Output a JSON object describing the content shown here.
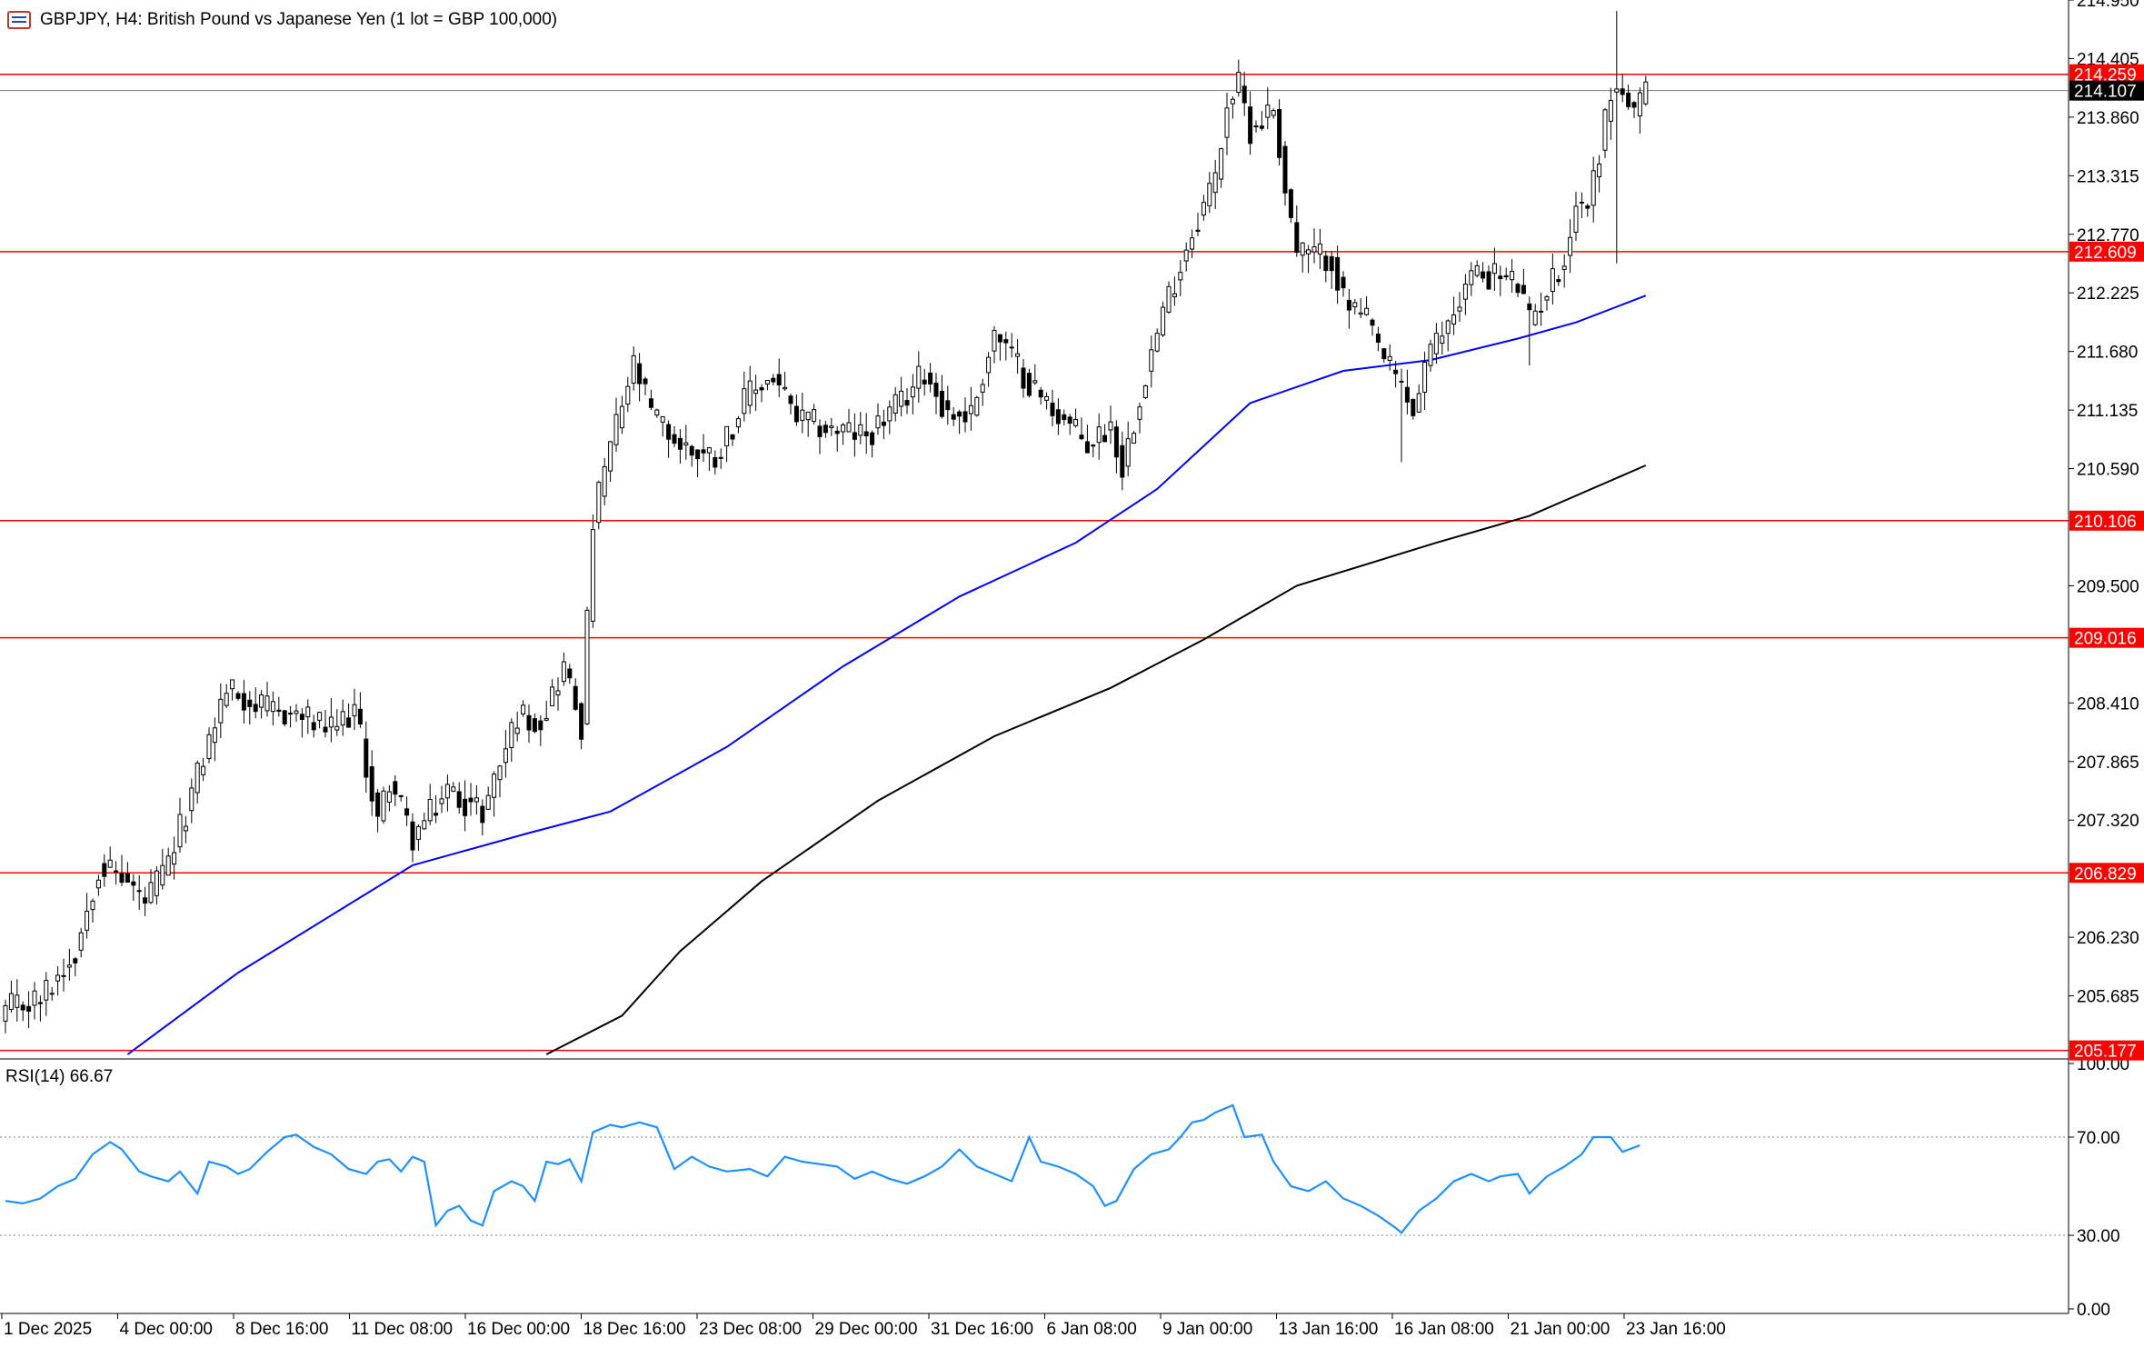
{
  "window": {
    "title": "GBPJPY, H4:  British Pound vs Japanese Yen (1 lot = GBP 100,000)"
  },
  "colors": {
    "background": "#ffffff",
    "candle_up": "#ffffff",
    "candle_down": "#000000",
    "candle_outline": "#000000",
    "sma_fast": "#0000ff",
    "sma_slow": "#000000",
    "level_line": "#ff0000",
    "current_price_line": "#808080",
    "rsi_line": "#1e90ff",
    "axis_text": "#000000"
  },
  "chart_data": [
    {
      "type": "candlestick",
      "symbol": "GBPJPY",
      "timeframe": "H4",
      "title": "GBPJPY, H4:  British Pound vs Japanese Yen (1 lot = GBP 100,000)",
      "ylim": [
        205.14,
        214.95
      ],
      "y_ticks": [
        "214.950",
        "214.405",
        "213.860",
        "213.315",
        "212.770",
        "212.225",
        "211.680",
        "211.135",
        "210.590",
        "209.500",
        "208.410",
        "207.865",
        "207.320",
        "206.230",
        "205.685"
      ],
      "x_ticks": [
        "1 Dec 2025",
        "4 Dec 00:00",
        "8 Dec 16:00",
        "11 Dec 08:00",
        "16 Dec 00:00",
        "18 Dec 16:00",
        "23 Dec 08:00",
        "29 Dec 00:00",
        "31 Dec 16:00",
        "6 Jan 08:00",
        "9 Jan 00:00",
        "13 Jan 16:00",
        "16 Jan 08:00",
        "21 Jan 00:00",
        "23 Jan 16:00"
      ],
      "horizontal_levels": [
        {
          "value": 214.259,
          "label": "214.259"
        },
        {
          "value": 212.609,
          "label": "212.609"
        },
        {
          "value": 210.106,
          "label": "210.106"
        },
        {
          "value": 209.016,
          "label": "209.016"
        },
        {
          "value": 206.829,
          "label": "206.829"
        },
        {
          "value": 205.177,
          "label": "205.177"
        }
      ],
      "current_price": {
        "value": 214.107,
        "label": "214.107"
      },
      "close_path": [
        [
          0,
          205.55
        ],
        [
          6,
          205.65
        ],
        [
          12,
          206.1
        ],
        [
          16,
          206.9
        ],
        [
          20,
          206.8
        ],
        [
          24,
          206.55
        ],
        [
          28,
          206.9
        ],
        [
          34,
          207.9
        ],
        [
          38,
          208.55
        ],
        [
          44,
          208.35
        ],
        [
          50,
          208.3
        ],
        [
          56,
          208.15
        ],
        [
          60,
          208.35
        ],
        [
          64,
          207.3
        ],
        [
          66,
          207.7
        ],
        [
          70,
          207.15
        ],
        [
          76,
          207.6
        ],
        [
          82,
          207.4
        ],
        [
          88,
          208.3
        ],
        [
          92,
          208.25
        ],
        [
          96,
          208.75
        ],
        [
          99,
          208.2
        ],
        [
          101,
          210.1
        ],
        [
          104,
          210.8
        ],
        [
          108,
          211.55
        ],
        [
          111,
          211.1
        ],
        [
          116,
          210.8
        ],
        [
          122,
          210.7
        ],
        [
          128,
          211.3
        ],
        [
          132,
          211.45
        ],
        [
          136,
          211.05
        ],
        [
          142,
          210.95
        ],
        [
          148,
          210.9
        ],
        [
          154,
          211.2
        ],
        [
          158,
          211.5
        ],
        [
          162,
          211.1
        ],
        [
          166,
          211.1
        ],
        [
          170,
          211.85
        ],
        [
          174,
          211.55
        ],
        [
          178,
          211.25
        ],
        [
          182,
          211.05
        ],
        [
          186,
          210.8
        ],
        [
          190,
          211.0
        ],
        [
          192,
          210.6
        ],
        [
          196,
          211.5
        ],
        [
          200,
          212.2
        ],
        [
          204,
          212.8
        ],
        [
          208,
          213.3
        ],
        [
          210,
          214.0
        ],
        [
          212,
          214.15
        ],
        [
          214,
          213.75
        ],
        [
          218,
          213.95
        ],
        [
          220,
          213.2
        ],
        [
          222,
          212.6
        ],
        [
          228,
          212.55
        ],
        [
          230,
          212.15
        ],
        [
          234,
          211.95
        ],
        [
          238,
          211.5
        ],
        [
          240,
          211.35
        ],
        [
          242,
          211.1
        ],
        [
          244,
          211.55
        ],
        [
          248,
          211.95
        ],
        [
          252,
          212.4
        ],
        [
          256,
          212.4
        ],
        [
          260,
          212.3
        ],
        [
          262,
          211.95
        ],
        [
          264,
          212.15
        ],
        [
          268,
          212.55
        ],
        [
          270,
          213.05
        ],
        [
          272,
          213.05
        ],
        [
          274,
          213.55
        ],
        [
          276,
          214.1
        ],
        [
          278,
          214.1
        ],
        [
          280,
          213.85
        ],
        [
          282,
          214.1
        ]
      ],
      "spikes": [
        {
          "index": 277,
          "high": 214.85,
          "low": 212.5
        },
        {
          "index": 240,
          "low": 210.65
        },
        {
          "index": 262,
          "low": 211.55
        }
      ],
      "series": [
        {
          "name": "",
          "type": "line",
          "color": "#0000ff",
          "path": [
            [
              21,
              205.14
            ],
            [
              40,
              205.9
            ],
            [
              70,
              206.9
            ],
            [
              90,
              207.2
            ],
            [
              104,
              207.4
            ],
            [
              124,
              208.0
            ],
            [
              144,
              208.75
            ],
            [
              164,
              209.4
            ],
            [
              184,
              209.9
            ],
            [
              198,
              210.4
            ],
            [
              214,
              211.2
            ],
            [
              230,
              211.5
            ],
            [
              245,
              211.6
            ],
            [
              260,
              211.8
            ],
            [
              270,
              211.95
            ],
            [
              282,
              212.2
            ]
          ]
        },
        {
          "name": "",
          "type": "line",
          "color": "#000000",
          "path": [
            [
              93,
              205.14
            ],
            [
              106,
              205.5
            ],
            [
              116,
              206.1
            ],
            [
              130,
              206.75
            ],
            [
              150,
              207.5
            ],
            [
              170,
              208.1
            ],
            [
              190,
              208.55
            ],
            [
              206,
              209.0
            ],
            [
              222,
              209.5
            ],
            [
              246,
              209.9
            ],
            [
              262,
              210.15
            ],
            [
              282,
              210.62
            ]
          ]
        }
      ]
    },
    {
      "type": "line",
      "indicator": "RSI(14)",
      "label": "RSI(14) 66.67",
      "current_value": 66.67,
      "ylim": [
        0,
        100
      ],
      "y_ticks": [
        "100.00",
        "70.00",
        "30.00",
        "0.00"
      ],
      "levels": [
        70,
        30
      ],
      "series": [
        {
          "name": "RSI(14)",
          "color": "#1e90ff",
          "points": [
            [
              0,
              44
            ],
            [
              3,
              43
            ],
            [
              6,
              45
            ],
            [
              9,
              50
            ],
            [
              12,
              53
            ],
            [
              15,
              63
            ],
            [
              18,
              68
            ],
            [
              20,
              65
            ],
            [
              23,
              56
            ],
            [
              25,
              54
            ],
            [
              28,
              52
            ],
            [
              30,
              56
            ],
            [
              33,
              47
            ],
            [
              35,
              60
            ],
            [
              38,
              58
            ],
            [
              40,
              55
            ],
            [
              42,
              57
            ],
            [
              45,
              64
            ],
            [
              48,
              70
            ],
            [
              50,
              71
            ],
            [
              53,
              66
            ],
            [
              56,
              63
            ],
            [
              59,
              57
            ],
            [
              62,
              55
            ],
            [
              64,
              60
            ],
            [
              66,
              61
            ],
            [
              68,
              56
            ],
            [
              70,
              62
            ],
            [
              72,
              60
            ],
            [
              74,
              34
            ],
            [
              76,
              40
            ],
            [
              78,
              42
            ],
            [
              80,
              36
            ],
            [
              82,
              34
            ],
            [
              84,
              48
            ],
            [
              87,
              52
            ],
            [
              89,
              50
            ],
            [
              91,
              44
            ],
            [
              93,
              60
            ],
            [
              95,
              59
            ],
            [
              97,
              61
            ],
            [
              99,
              52
            ],
            [
              101,
              72
            ],
            [
              104,
              75
            ],
            [
              106,
              74
            ],
            [
              109,
              76
            ],
            [
              112,
              74
            ],
            [
              115,
              57
            ],
            [
              118,
              62
            ],
            [
              121,
              58
            ],
            [
              124,
              56
            ],
            [
              128,
              57
            ],
            [
              131,
              54
            ],
            [
              134,
              62
            ],
            [
              137,
              60
            ],
            [
              140,
              59
            ],
            [
              143,
              58
            ],
            [
              146,
              53
            ],
            [
              149,
              56
            ],
            [
              152,
              53
            ],
            [
              155,
              51
            ],
            [
              158,
              54
            ],
            [
              161,
              58
            ],
            [
              164,
              65
            ],
            [
              167,
              58
            ],
            [
              170,
              55
            ],
            [
              173,
              52
            ],
            [
              176,
              70
            ],
            [
              178,
              60
            ],
            [
              181,
              58
            ],
            [
              184,
              55
            ],
            [
              187,
              50
            ],
            [
              189,
              42
            ],
            [
              191,
              44
            ],
            [
              194,
              57
            ],
            [
              197,
              63
            ],
            [
              200,
              65
            ],
            [
              202,
              70
            ],
            [
              204,
              76
            ],
            [
              206,
              77
            ],
            [
              208,
              80
            ],
            [
              211,
              83
            ],
            [
              213,
              70
            ],
            [
              216,
              71
            ],
            [
              218,
              60
            ],
            [
              221,
              50
            ],
            [
              224,
              48
            ],
            [
              227,
              52
            ],
            [
              230,
              45
            ],
            [
              233,
              42
            ],
            [
              236,
              38
            ],
            [
              239,
              33
            ],
            [
              240,
              31
            ],
            [
              243,
              40
            ],
            [
              246,
              45
            ],
            [
              249,
              52
            ],
            [
              252,
              55
            ],
            [
              255,
              52
            ],
            [
              257,
              54
            ],
            [
              260,
              55
            ],
            [
              262,
              47
            ],
            [
              265,
              54
            ],
            [
              268,
              58
            ],
            [
              271,
              63
            ],
            [
              273,
              70
            ],
            [
              276,
              70
            ],
            [
              278,
              64
            ],
            [
              281,
              66.67
            ]
          ]
        }
      ]
    }
  ]
}
